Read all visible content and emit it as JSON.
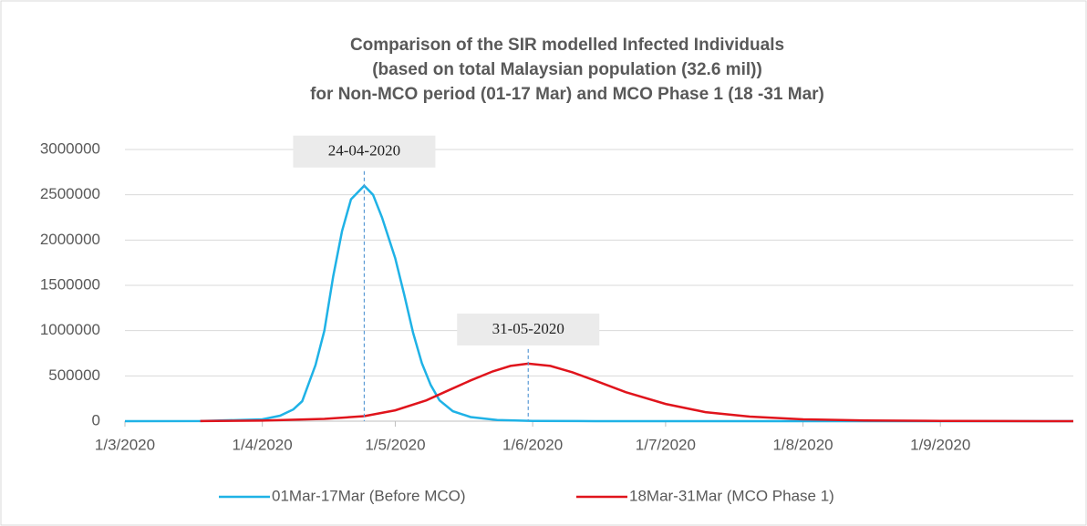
{
  "chart_data": {
    "type": "line",
    "title": [
      "Comparison of the SIR modelled Infected Individuals",
      "(based on total Malaysian population (32.6 mil))",
      "for Non-MCO period (01-17 Mar) and MCO Phase 1 (18 -31 Mar)"
    ],
    "xlim": [
      "2020-03-01",
      "2020-10-01"
    ],
    "xticks": [
      {
        "value": "2020-03-01",
        "label": "1/3/2020"
      },
      {
        "value": "2020-04-01",
        "label": "1/4/2020"
      },
      {
        "value": "2020-05-01",
        "label": "1/5/2020"
      },
      {
        "value": "2020-06-01",
        "label": "1/6/2020"
      },
      {
        "value": "2020-07-01",
        "label": "1/7/2020"
      },
      {
        "value": "2020-08-01",
        "label": "1/8/2020"
      },
      {
        "value": "2020-09-01",
        "label": "1/9/2020"
      }
    ],
    "ylim": [
      0,
      3000000
    ],
    "yticks": [
      0,
      500000,
      1000000,
      1500000,
      2000000,
      2500000,
      3000000
    ],
    "grid": true,
    "legend": "bottom",
    "series": [
      {
        "name": "01Mar-17Mar (Before MCO)",
        "color": "#1fb2e6",
        "x": [
          "2020-03-01",
          "2020-03-18",
          "2020-04-01",
          "2020-04-05",
          "2020-04-08",
          "2020-04-10",
          "2020-04-13",
          "2020-04-15",
          "2020-04-17",
          "2020-04-19",
          "2020-04-21",
          "2020-04-24",
          "2020-04-26",
          "2020-04-28",
          "2020-05-01",
          "2020-05-03",
          "2020-05-05",
          "2020-05-07",
          "2020-05-09",
          "2020-05-11",
          "2020-05-14",
          "2020-05-18",
          "2020-05-24",
          "2020-06-01",
          "2020-06-15",
          "2020-07-01",
          "2020-10-01"
        ],
        "values": [
          0,
          1000,
          20000,
          60000,
          130000,
          220000,
          620000,
          1000000,
          1600000,
          2100000,
          2450000,
          2600000,
          2500000,
          2250000,
          1800000,
          1400000,
          980000,
          640000,
          400000,
          230000,
          110000,
          45000,
          12000,
          3000,
          500,
          0,
          0
        ]
      },
      {
        "name": "18Mar-31Mar (MCO Phase 1)",
        "color": "#e0141c",
        "x": [
          "2020-03-18",
          "2020-04-01",
          "2020-04-15",
          "2020-04-24",
          "2020-05-01",
          "2020-05-08",
          "2020-05-13",
          "2020-05-18",
          "2020-05-23",
          "2020-05-27",
          "2020-05-31",
          "2020-06-05",
          "2020-06-10",
          "2020-06-15",
          "2020-06-22",
          "2020-07-01",
          "2020-07-10",
          "2020-07-20",
          "2020-08-01",
          "2020-08-15",
          "2020-09-01",
          "2020-09-15",
          "2020-10-01"
        ],
        "values": [
          1000,
          6000,
          25000,
          55000,
          120000,
          230000,
          340000,
          450000,
          550000,
          610000,
          635000,
          610000,
          540000,
          450000,
          320000,
          190000,
          100000,
          50000,
          20000,
          8000,
          3000,
          1000,
          500
        ]
      }
    ],
    "annotations": [
      {
        "text": "24-04-2020",
        "x": "2020-04-24"
      },
      {
        "text": "31-05-2020",
        "x": "2020-05-31"
      }
    ]
  }
}
